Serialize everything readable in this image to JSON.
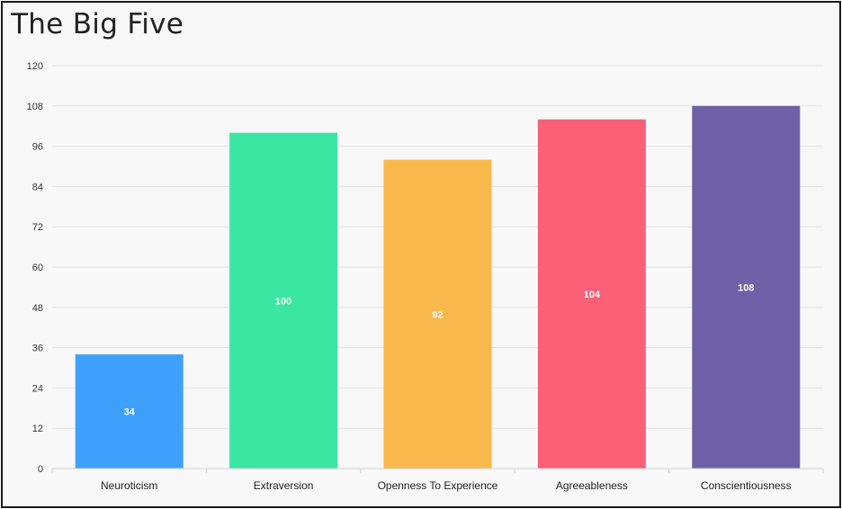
{
  "chart_data": {
    "type": "bar",
    "title": "The Big Five",
    "categories": [
      "Neuroticism",
      "Extraversion",
      "Openness To Experience",
      "Agreeableness",
      "Conscientiousness"
    ],
    "values": [
      34,
      100,
      92,
      104,
      108
    ],
    "data_labels": [
      "34",
      "100",
      "92",
      "104",
      "108"
    ],
    "colors": [
      "#3fa0fc",
      "#3ae6a2",
      "#f9b84c",
      "#fb6077",
      "#6e61a8"
    ],
    "xlabel": "",
    "ylabel": "",
    "ylim": [
      0,
      120
    ],
    "yticks": [
      "0",
      "12",
      "24",
      "36",
      "48",
      "60",
      "72",
      "84",
      "96",
      "108",
      "120"
    ],
    "grid": true,
    "legend": "none"
  }
}
